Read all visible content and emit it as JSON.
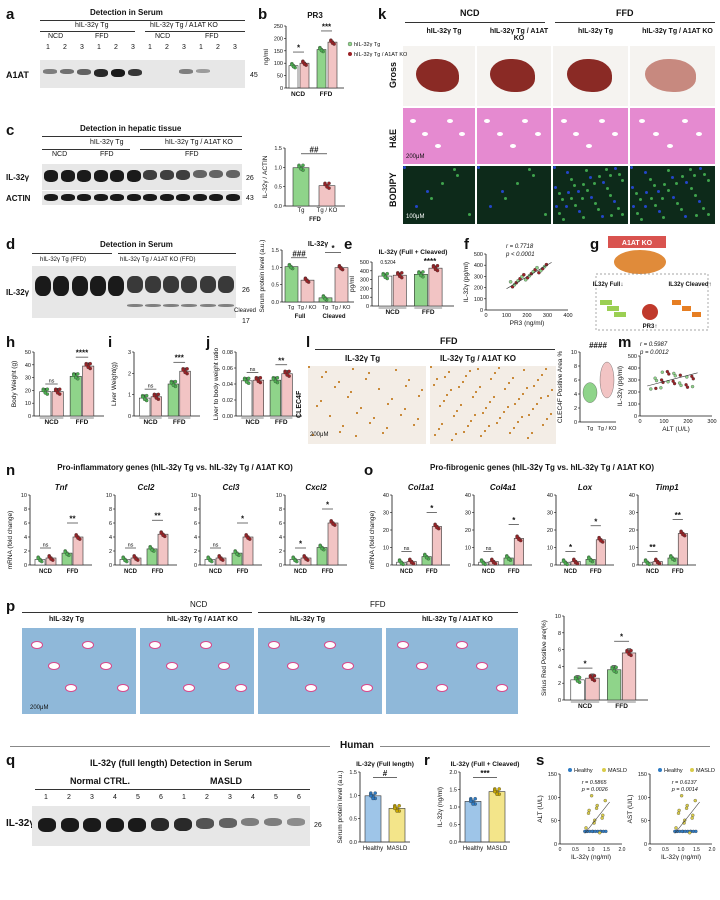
{
  "panels": [
    "a",
    "b",
    "c",
    "d",
    "e",
    "f",
    "g",
    "h",
    "i",
    "j",
    "k",
    "l",
    "m",
    "n",
    "o",
    "p",
    "q",
    "r",
    "s"
  ],
  "a": {
    "title": "Detection in Serum",
    "group1": "hIL-32γ Tg",
    "group2": "hIL-32γ Tg / A1AT KO",
    "ncd": "NCD",
    "ffd": "FFD",
    "lanes": [
      "1",
      "2",
      "3",
      "1",
      "2",
      "3",
      "1",
      "2",
      "3",
      "1",
      "2",
      "3"
    ],
    "row": "A1AT",
    "marker": "45"
  },
  "b": {
    "title": "PR3",
    "ylabel": "ng/ml",
    "legend": [
      "hIL-32γ Tg",
      "hIL-32γ Tg / A1AT KO"
    ],
    "groups": [
      "NCD",
      "FFD"
    ],
    "sig": [
      "*",
      "***"
    ]
  },
  "c": {
    "title": "Detection in hepatic tissue",
    "group1": "hIL-32γ Tg",
    "group2": "hIL-32γ Tg / A1AT KO",
    "ncd": "NCD",
    "ffd": "FFD",
    "row1": "IL-32γ",
    "row2": "ACTIN",
    "marker1": "26",
    "marker2": "43",
    "ylabel": "IL-32γ / ACTIN",
    "ticks": [
      "0.0",
      "0.5",
      "1.0",
      "1.5"
    ],
    "xticks": [
      "Tg",
      "Tg / KO"
    ],
    "xgroup": "FFD",
    "sig": "##"
  },
  "d": {
    "title": "Detection in Serum",
    "group1": "hIL-32γ Tg (FFD)",
    "group2": "hIL-32γ Tg / A1AT KO (FFD)",
    "row": "IL-32γ",
    "m26": "26",
    "m17": "17",
    "cleaved": "Cleaved",
    "chart_title": "IL-32γ",
    "ylabel": "Serum protein level (a.u.)",
    "ticks": [
      "0.0",
      "0.5",
      "1.0",
      "1.5"
    ],
    "xticks": [
      "Tg",
      "Tg / KO",
      "Tg",
      "Tg / KO"
    ],
    "xgroups": [
      "Full",
      "Cleaved"
    ],
    "sig": [
      "###",
      "*"
    ]
  },
  "e": {
    "title": "IL-32γ (Full + Cleaved)",
    "ylabel": "pg/ml",
    "ticks": [
      "0",
      "100",
      "200",
      "300",
      "400",
      "500"
    ],
    "p": "0.5204",
    "sig": "****",
    "groups": [
      "NCD",
      "FFD"
    ]
  },
  "f": {
    "r": "r = 0.7718",
    "p": "p < 0.0001",
    "xlabel": "PR3 (ng/ml)",
    "ylabel": "IL-32γ (pg/ml)",
    "xticks": [
      "0",
      "100",
      "200",
      "300",
      "400"
    ],
    "yticks": [
      "0",
      "100",
      "200",
      "300",
      "400",
      "500"
    ]
  },
  "g": {
    "ko": "A1AT KO",
    "full": "IL32γ Full↓",
    "cleaved": "IL32γ Cleaved↑",
    "pr3": "PR3↑"
  },
  "h": {
    "ylabel": "Body Weight (g)",
    "ticks": [
      "0",
      "10",
      "20",
      "30",
      "40",
      "50"
    ],
    "sig": [
      "ns",
      "****"
    ],
    "groups": [
      "NCD",
      "FFD"
    ]
  },
  "i": {
    "ylabel": "Liver Weight(g)",
    "ticks": [
      "0",
      "1",
      "2",
      "3"
    ],
    "sig": [
      "ns",
      "***"
    ],
    "groups": [
      "NCD",
      "FFD"
    ]
  },
  "j": {
    "ylabel": "Liver to body weight ratio",
    "ticks": [
      "0.00",
      "0.02",
      "0.04",
      "0.06",
      "0.08"
    ],
    "sig": [
      "ns",
      "**"
    ],
    "groups": [
      "NCD",
      "FFD"
    ]
  },
  "k": {
    "ncd": "NCD",
    "ffd": "FFD",
    "cols": [
      "hIL-32γ Tg",
      "hIL-32γ Tg / A1AT KO",
      "hIL-32γ Tg",
      "hIL-32γ Tg / A1AT KO"
    ],
    "rows": [
      "Gross",
      "H&E",
      "BODIPY"
    ],
    "scale1": "200μM",
    "scale2": "100μM"
  },
  "l": {
    "title": "FFD",
    "cols": [
      "IL-32γ Tg",
      "IL-32γ Tg / A1AT KO"
    ],
    "row": "CLEC4F",
    "scale": "200μM",
    "ylabel": "CLEC4F Positive Area %",
    "ticks": [
      "0",
      "2",
      "4",
      "6",
      "8",
      "10"
    ],
    "xticks": [
      "Tg",
      "Tg / KO"
    ],
    "sig": "####"
  },
  "m": {
    "r": "r = 0.5987",
    "p": "p = 0.0012",
    "xlabel": "ALT (U/L)",
    "ylabel": "IL-32γ (pg/ml)",
    "xticks": [
      "0",
      "100",
      "200",
      "300"
    ],
    "yticks": [
      "0",
      "100",
      "200",
      "300",
      "400",
      "500"
    ]
  },
  "n": {
    "title": "Pro-inflammatory genes (hIL-32γ Tg vs. hIL-32γ Tg / A1AT KO)",
    "ylabel": "mRNA (fold change)",
    "genes": [
      "Tnf",
      "Ccl2",
      "Ccl3",
      "Cxcl2"
    ],
    "ticks": [
      "0",
      "2",
      "4",
      "6",
      "8",
      "10"
    ],
    "sig": [
      [
        "ns",
        "**"
      ],
      [
        "ns",
        "**"
      ],
      [
        "ns",
        "*"
      ],
      [
        "*",
        "*"
      ]
    ],
    "groups": [
      "NCD",
      "FFD"
    ]
  },
  "o": {
    "title": "Pro-fibrogenic genes (hIL-32γ Tg vs. hIL-32γ Tg / A1AT KO)",
    "ylabel": "mRNA (fold change)",
    "genes": [
      "Col1a1",
      "Col4a1",
      "Lox",
      "Timp1"
    ],
    "ticks": [
      "0",
      "10",
      "20",
      "30",
      "40"
    ],
    "sig": [
      [
        "ns",
        "*"
      ],
      [
        "ns",
        "*"
      ],
      [
        "*",
        "*"
      ],
      [
        "**",
        "**"
      ]
    ],
    "groups": [
      "NCD",
      "FFD"
    ]
  },
  "p": {
    "ncd": "NCD",
    "ffd": "FFD",
    "cols": [
      "hIL-32γ Tg",
      "hIL-32γ Tg / A1AT KO",
      "hIL-32γ Tg",
      "hIL-32γ Tg / A1AT KO"
    ],
    "scale": "200μM",
    "ylabel": "Sirius Red Positive are(%)",
    "ticks": [
      "0",
      "2",
      "4",
      "6",
      "8",
      "10"
    ],
    "sig": [
      "*",
      "*"
    ],
    "groups": [
      "NCD",
      "FFD"
    ]
  },
  "human": "Human",
  "q": {
    "title": "IL-32γ (full length) Detection in Serum",
    "g1": "Normal CTRL.",
    "g2": "MASLD",
    "lanes": [
      "1",
      "2",
      "3",
      "4",
      "5",
      "6",
      "1",
      "2",
      "3",
      "4",
      "5",
      "6"
    ],
    "row": "IL-32γ",
    "marker": "26",
    "chart_title": "IL-32γ (Full length)",
    "ylabel": "Serum protein level (a.u.)",
    "ticks": [
      "0.0",
      "0.5",
      "1.0",
      "1.5"
    ],
    "xticks": [
      "Healthy",
      "MASLD"
    ],
    "sig": "#"
  },
  "r": {
    "title": "IL-32γ (Full + Cleaved)",
    "ylabel": "IL-32γ (ng/ml)",
    "ticks": [
      "0.0",
      "0.5",
      "1.0",
      "1.5",
      "2.0"
    ],
    "xticks": [
      "Healthy",
      "MASLD"
    ],
    "sig": "***"
  },
  "s": {
    "legend": [
      "Healthy",
      "MASLD"
    ],
    "left": {
      "r": "r = 0.5865",
      "p": "p = 0.0026",
      "ylabel": "ALT (U/L)",
      "yticks": [
        "0",
        "50",
        "100",
        "150"
      ]
    },
    "right": {
      "r": "r = 0.6137",
      "p": "p = 0.0014",
      "ylabel": "AST (U/L)",
      "yticks": [
        "0",
        "50",
        "100",
        "150"
      ]
    },
    "xlabel": "IL-32γ (ng/ml)",
    "xticks": [
      "0",
      "0.5",
      "1.0",
      "1.5",
      "2.0"
    ]
  },
  "colors": {
    "green": "#8fd48a",
    "pink": "#f2c4c4",
    "darkred": "#9b2226",
    "he": "#e58ad0",
    "sirius": "#8fb8d9",
    "bodipy": "#0d2a1a",
    "dapi": "#2346c8"
  }
}
